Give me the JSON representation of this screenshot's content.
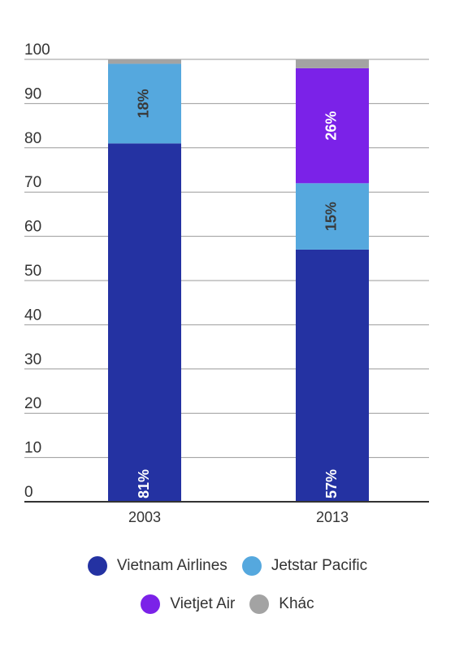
{
  "chart_data": {
    "type": "bar",
    "stacked": true,
    "categories": [
      "2003",
      "2013"
    ],
    "series": [
      {
        "name": "Vietnam Airlines",
        "color": "#2432a2",
        "values": [
          81,
          57
        ],
        "labels": [
          "81%",
          "57%"
        ],
        "label_color": "#ffffff"
      },
      {
        "name": "Jetstar Pacific",
        "color": "#55a8de",
        "values": [
          18,
          15
        ],
        "labels": [
          "18%",
          "15%"
        ],
        "label_color": "#3a3a3a"
      },
      {
        "name": "Vietjet Air",
        "color": "#7b22e8",
        "values": [
          0,
          26
        ],
        "labels": [
          "",
          "26%"
        ],
        "label_color": "#ffffff"
      },
      {
        "name": "Khác",
        "color": "#a3a3a3",
        "values": [
          1,
          2
        ],
        "labels": [
          "",
          ""
        ],
        "label_color": "#3a3a3a"
      }
    ],
    "ylim": [
      0,
      100
    ],
    "yticks": [
      0,
      10,
      20,
      30,
      40,
      50,
      60,
      70,
      80,
      90,
      100
    ],
    "grid": true,
    "legend_position": "bottom",
    "title": "",
    "xlabel": "",
    "ylabel": ""
  }
}
